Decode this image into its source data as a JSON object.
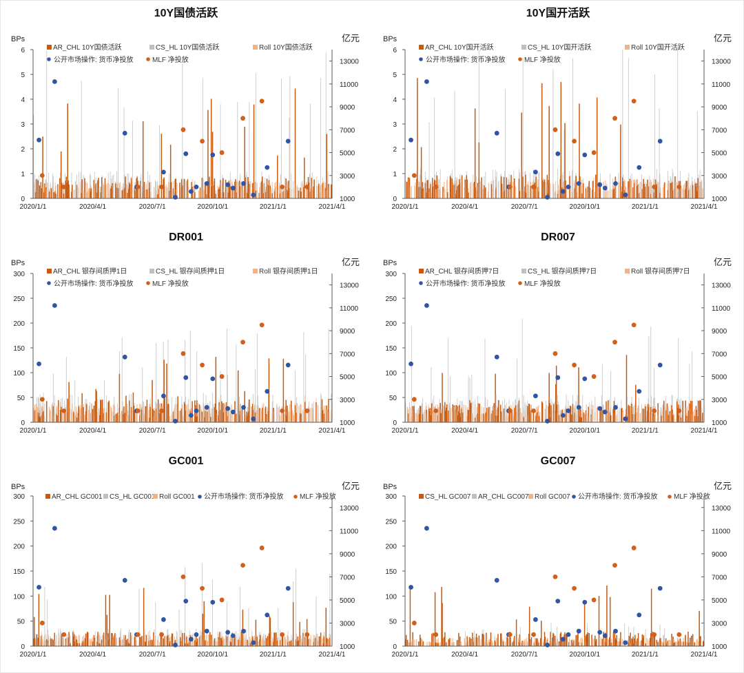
{
  "colors": {
    "ar_chl": "#c55a11",
    "cs_hl": "#bfbfbf",
    "roll": "#f4b183",
    "omo_dot": "#2f55a4",
    "mlf_dot": "#d2601a",
    "axis": "#595959"
  },
  "chart_data": [
    {
      "type": "bar",
      "title": "10Y国债活跃",
      "ylabel": "BPs",
      "y2label": "亿元",
      "ylim": [
        0,
        6
      ],
      "yticks": [
        "0",
        "1",
        "2",
        "3",
        "4",
        "5",
        "6"
      ],
      "y2lim": [
        1000,
        14000
      ],
      "y2ticks": [
        "1000",
        "3000",
        "5000",
        "7000",
        "9000",
        "11000",
        "13000"
      ],
      "xticks": [
        "2020/1/1",
        "2020/4/1",
        "2020/7/1",
        "2020/10/1",
        "2021/1/1",
        "2021/4/1"
      ],
      "legend": [
        "AR_CHL 10Y国债活跃",
        "CS_HL 10Y国债活跃",
        "Roll 10Y国债活跃",
        "公开市场操作: 货币净投放",
        "MLF 净投放"
      ],
      "legend_layout": "two-row",
      "series_order": [
        "ar_chl",
        "cs_hl",
        "roll"
      ],
      "bar_profile": {
        "seed": 11,
        "base": 0.55,
        "spike": 3.2,
        "max": 6
      }
    },
    {
      "type": "bar",
      "title": "10Y国开活跃",
      "ylabel": "BPs",
      "y2label": "亿元",
      "ylim": [
        0,
        6
      ],
      "yticks": [
        "0",
        "1",
        "2",
        "3",
        "4",
        "5",
        "6"
      ],
      "y2lim": [
        1000,
        14000
      ],
      "y2ticks": [
        "1000",
        "3000",
        "5000",
        "7000",
        "9000",
        "11000",
        "13000"
      ],
      "xticks": [
        "2020/1/1",
        "2020/4/1",
        "2020/7/1",
        "2020/10/1",
        "2021/1/1",
        "2021/4/1"
      ],
      "legend": [
        "AR_CHL 10Y国开活跃",
        "CS_HL 10Y国开活跃",
        "Roll 10Y国开活跃",
        "公开市场操作: 货币净投放",
        "MLF 净投放"
      ],
      "legend_layout": "two-row",
      "series_order": [
        "ar_chl",
        "cs_hl",
        "roll"
      ],
      "bar_profile": {
        "seed": 23,
        "base": 0.6,
        "spike": 3.5,
        "max": 6
      }
    },
    {
      "type": "bar",
      "title": "DR001",
      "ylabel": "BPs",
      "y2label": "亿元",
      "ylim": [
        0,
        300
      ],
      "yticks": [
        "0",
        "50",
        "100",
        "150",
        "200",
        "250",
        "300"
      ],
      "y2lim": [
        1000,
        14000
      ],
      "y2ticks": [
        "1000",
        "3000",
        "5000",
        "7000",
        "9000",
        "11000",
        "13000"
      ],
      "xticks": [
        "2020/1/1",
        "2020/4/1",
        "2020/7/1",
        "2020/10/1",
        "2021/1/1",
        "2021/4/1"
      ],
      "legend": [
        "AR_CHL 银存间质押1日",
        "CS_HL 银存间质押1日",
        "Roll 银存间质押1日",
        "公开市场操作: 货币净投放",
        "MLF 净投放"
      ],
      "legend_layout": "two-row",
      "series_order": [
        "ar_chl",
        "cs_hl",
        "roll"
      ],
      "bar_profile": {
        "seed": 37,
        "base": 30,
        "spike": 100,
        "max": 300
      }
    },
    {
      "type": "bar",
      "title": "DR007",
      "ylabel": "BPs",
      "y2label": "亿元",
      "ylim": [
        0,
        300
      ],
      "yticks": [
        "0",
        "50",
        "100",
        "150",
        "200",
        "250",
        "300"
      ],
      "y2lim": [
        1000,
        14000
      ],
      "y2ticks": [
        "1000",
        "3000",
        "5000",
        "7000",
        "9000",
        "11000",
        "13000"
      ],
      "xticks": [
        "2020/1/1",
        "2020/4/1",
        "2020/7/1",
        "2020/10/1",
        "2021/1/1",
        "2021/4/1"
      ],
      "legend": [
        "AR_CHL 银存间质押7日",
        "CS_HL 银存间质押7日",
        "Roll 银存间质押7日",
        "公开市场操作: 货币净投放",
        "MLF 净投放"
      ],
      "legend_layout": "two-row",
      "series_order": [
        "ar_chl",
        "cs_hl",
        "roll"
      ],
      "bar_profile": {
        "seed": 41,
        "base": 28,
        "spike": 110,
        "max": 300
      }
    },
    {
      "type": "bar",
      "title": "GC001",
      "ylabel": "BPs",
      "y2label": "亿元",
      "ylim": [
        0,
        300
      ],
      "yticks": [
        "0",
        "50",
        "100",
        "150",
        "200",
        "250",
        "300"
      ],
      "y2lim": [
        1000,
        14000
      ],
      "y2ticks": [
        "1000",
        "3000",
        "5000",
        "7000",
        "9000",
        "11000",
        "13000"
      ],
      "xticks": [
        "2020/1/1",
        "2020/4/1",
        "2020/7/1",
        "2020/10/1",
        "2021/1/1",
        "2021/4/1"
      ],
      "legend": [
        "AR_CHL GC001",
        "CS_HL GC001",
        "Roll GC001",
        "公开市场操作: 货币净投放",
        "MLF 净投放"
      ],
      "legend_layout": "one-row",
      "series_order": [
        "ar_chl",
        "cs_hl",
        "roll"
      ],
      "bar_profile": {
        "seed": 53,
        "base": 18,
        "spike": 90,
        "max": 300
      }
    },
    {
      "type": "bar",
      "title": "GC007",
      "ylabel": "BPs",
      "y2label": "亿元",
      "ylim": [
        0,
        300
      ],
      "yticks": [
        "0",
        "50",
        "100",
        "150",
        "200",
        "250",
        "300"
      ],
      "y2lim": [
        1000,
        14000
      ],
      "y2ticks": [
        "1000",
        "3000",
        "5000",
        "7000",
        "9000",
        "11000",
        "13000"
      ],
      "xticks": [
        "2020/1/1",
        "2020/4/1",
        "2020/7/1",
        "2020/10/1",
        "2021/1/1",
        "2021/4/1"
      ],
      "legend": [
        "CS_HL GC007",
        "AR_CHL GC007",
        "Roll GC007",
        "公开市场操作: 货币净投放",
        "MLF 净投放"
      ],
      "legend_layout": "one-row",
      "series_order": [
        "cs_hl_dark",
        "ar_chl_grey",
        "roll"
      ],
      "bar_profile": {
        "seed": 67,
        "base": 14,
        "spike": 70,
        "max": 300
      }
    }
  ],
  "scatter_common": {
    "omo_net": [
      {
        "date": "2020-01-10",
        "value": 6100
      },
      {
        "date": "2020-02-03",
        "value": 11200
      },
      {
        "date": "2020-05-20",
        "value": 6700
      },
      {
        "date": "2020-06-07",
        "value": 2000
      },
      {
        "date": "2020-07-18",
        "value": 3300
      },
      {
        "date": "2020-08-05",
        "value": 1100
      },
      {
        "date": "2020-08-21",
        "value": 4900
      },
      {
        "date": "2020-08-29",
        "value": 1600
      },
      {
        "date": "2020-09-06",
        "value": 2000
      },
      {
        "date": "2020-09-22",
        "value": 2300
      },
      {
        "date": "2020-10-01",
        "value": 4800
      },
      {
        "date": "2020-10-24",
        "value": 2200
      },
      {
        "date": "2020-11-01",
        "value": 1900
      },
      {
        "date": "2020-11-17",
        "value": 2300
      },
      {
        "date": "2020-12-02",
        "value": 1300
      },
      {
        "date": "2020-12-23",
        "value": 3700
      },
      {
        "date": "2021-01-24",
        "value": 6000
      }
    ],
    "mlf_net": [
      {
        "date": "2020-01-15",
        "value": 3000
      },
      {
        "date": "2020-02-17",
        "value": 2000
      },
      {
        "date": "2020-06-09",
        "value": 2000
      },
      {
        "date": "2020-07-15",
        "value": 2000
      },
      {
        "date": "2020-08-17",
        "value": 7000
      },
      {
        "date": "2020-09-15",
        "value": 6000
      },
      {
        "date": "2020-10-15",
        "value": 5000
      },
      {
        "date": "2020-11-16",
        "value": 8000
      },
      {
        "date": "2020-12-15",
        "value": 9500
      },
      {
        "date": "2021-01-15",
        "value": 2000
      },
      {
        "date": "2021-02-22",
        "value": 2000
      }
    ]
  },
  "x_domain": [
    "2020-01-01",
    "2021-04-01"
  ]
}
